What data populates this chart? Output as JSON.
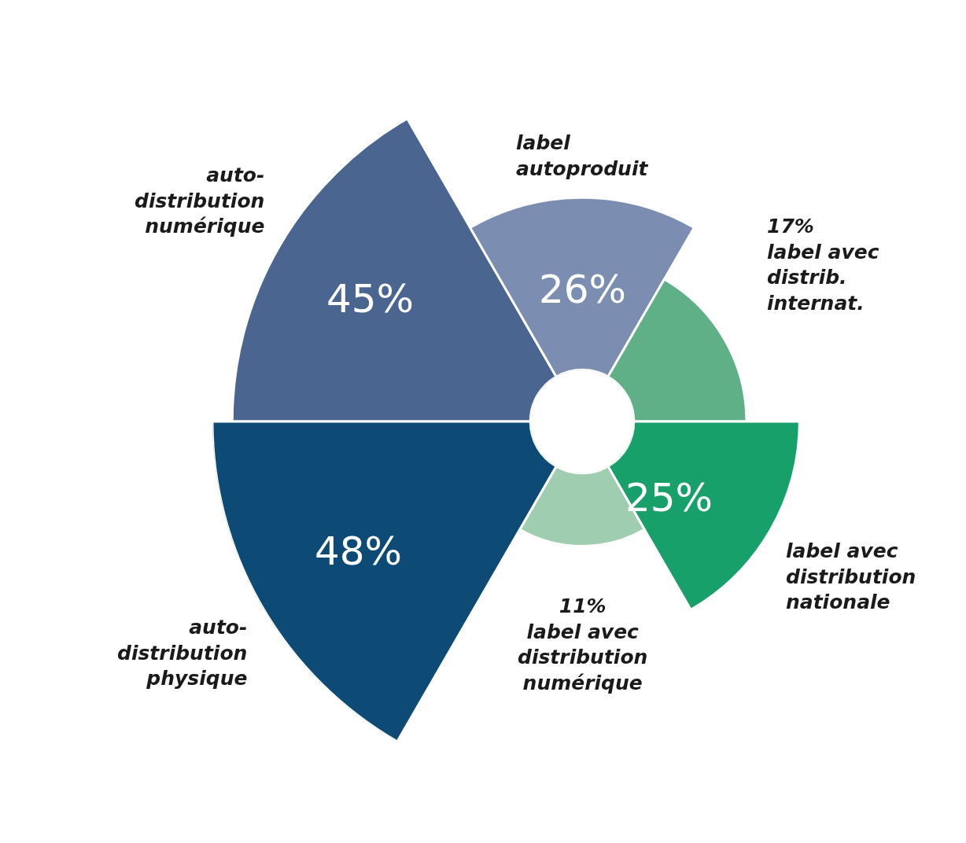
{
  "chart_data": {
    "type": "other",
    "categories": [
      "auto-distribution numérique",
      "label autoproduit",
      "label avec distrib. internat.",
      "label avec distribution nationale",
      "label avec distribution numérique",
      "auto-distribution physique"
    ],
    "values": [
      45,
      26,
      17,
      25,
      11,
      48
    ],
    "value_labels": [
      "45%",
      "26%",
      "17%",
      "25%",
      "11%",
      "48%"
    ],
    "colors": [
      "#4a6590",
      "#7b8db0",
      "#5faf87",
      "#18a06b",
      "#9ecdb0",
      "#0d4a75"
    ]
  }
}
